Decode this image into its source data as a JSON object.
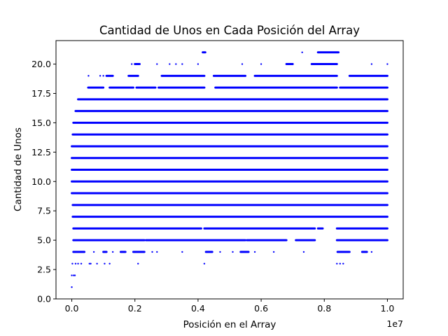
{
  "chart_data": {
    "type": "scatter",
    "title": "Cantidad de Unos en Cada Posición del Array",
    "xlabel": "Posición en el Array",
    "ylabel": "Cantidad de Unos",
    "x_offset_label": "1e7",
    "xlim": [
      -500000,
      10500000
    ],
    "ylim": [
      0,
      22
    ],
    "x_ticks": [
      0,
      2000000,
      4000000,
      6000000,
      8000000,
      10000000
    ],
    "x_tick_labels": [
      "0.0",
      "0.2",
      "0.4",
      "0.6",
      "0.8",
      "1.0"
    ],
    "y_ticks": [
      0,
      2.5,
      5,
      7.5,
      10,
      12.5,
      15,
      17.5,
      20
    ],
    "y_tick_labels": [
      "0.0",
      "2.5",
      "5.0",
      "7.5",
      "10.0",
      "12.5",
      "15.0",
      "17.5",
      "20.0"
    ],
    "grid": false,
    "color": "#0000ff",
    "x_range": [
      0,
      10000000
    ],
    "series": [
      {
        "bands": [
          {
            "y": 1,
            "x_points": [
              0
            ]
          },
          {
            "y": 2,
            "x_points": [
              0,
              60000,
              100000
            ]
          },
          {
            "y": 3,
            "x_points": [
              20000,
              120000,
              200000,
              300000,
              560000,
              600000,
              800000,
              1040000,
              1200000,
              2100000,
              4200000,
              8400000,
              8500000,
              8600000
            ]
          },
          {
            "y": 4,
            "segments": [
              [
                50000,
                400000
              ],
              [
                1000000,
                1100000
              ],
              [
                1550000,
                1700000
              ],
              [
                1950000,
                2300000
              ],
              [
                4250000,
                4450000
              ],
              [
                5350000,
                5600000
              ],
              [
                8420000,
                8800000
              ],
              [
                9200000,
                9350000
              ]
            ],
            "x_points": [
              700000,
              1300000,
              2550000,
              2700000,
              3500000,
              4700000,
              5100000,
              5800000,
              6400000,
              7350000,
              9500000
            ]
          },
          {
            "y": 5,
            "segments": [
              [
                50000,
                2300000
              ],
              [
                2350000,
                5500000
              ],
              [
                5550000,
                6800000
              ],
              [
                7100000,
                7700000
              ],
              [
                8400000,
                10000000
              ]
            ]
          },
          {
            "y": 6,
            "segments": [
              [
                50000,
                4100000
              ],
              [
                4200000,
                7700000
              ],
              [
                7800000,
                7950000
              ],
              [
                8400000,
                10000000
              ]
            ]
          },
          {
            "y": 7,
            "segments": [
              [
                30000,
                10000000
              ]
            ]
          },
          {
            "y": 8,
            "segments": [
              [
                30000,
                10000000
              ]
            ]
          },
          {
            "y": 9,
            "segments": [
              [
                0,
                10000000
              ]
            ]
          },
          {
            "y": 10,
            "segments": [
              [
                0,
                10000000
              ]
            ]
          },
          {
            "y": 11,
            "segments": [
              [
                0,
                10000000
              ]
            ]
          },
          {
            "y": 12,
            "segments": [
              [
                0,
                10000000
              ]
            ]
          },
          {
            "y": 13,
            "segments": [
              [
                0,
                10000000
              ]
            ]
          },
          {
            "y": 14,
            "segments": [
              [
                30000,
                10000000
              ]
            ]
          },
          {
            "y": 15,
            "segments": [
              [
                50000,
                10000000
              ]
            ]
          },
          {
            "y": 16,
            "segments": [
              [
                120000,
                10000000
              ]
            ]
          },
          {
            "y": 17,
            "segments": [
              [
                200000,
                10000000
              ]
            ]
          },
          {
            "y": 18,
            "segments": [
              [
                520000,
                1000000
              ],
              [
                1200000,
                1950000
              ],
              [
                2050000,
                2650000
              ],
              [
                2750000,
                4200000
              ],
              [
                4550000,
                8400000
              ],
              [
                8500000,
                10000000
              ]
            ]
          },
          {
            "y": 19,
            "segments": [
              [
                1100000,
                1300000
              ],
              [
                1800000,
                2100000
              ],
              [
                2850000,
                4200000
              ],
              [
                4500000,
                5500000
              ],
              [
                5800000,
                8400000
              ],
              [
                8800000,
                10000000
              ]
            ],
            "x_points": [
              530000,
              900000,
              1000000,
              4700000,
              5000000,
              9500000
            ]
          },
          {
            "y": 20,
            "segments": [
              [
                2000000,
                2150000
              ],
              [
                6800000,
                7000000
              ],
              [
                7600000,
                8400000
              ]
            ],
            "x_points": [
              1900000,
              2700000,
              3100000,
              3300000,
              3500000,
              4000000,
              5400000,
              6000000,
              9500000,
              10000000
            ]
          },
          {
            "y": 21,
            "segments": [
              [
                4150000,
                4230000
              ],
              [
                7800000,
                8450000
              ]
            ],
            "x_points": [
              7300000
            ]
          }
        ]
      }
    ]
  }
}
